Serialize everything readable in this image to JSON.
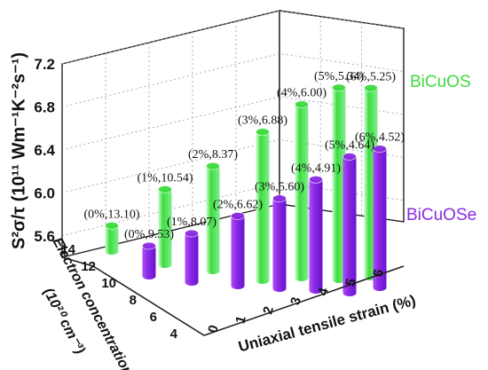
{
  "chart_data": {
    "type": "bar",
    "y_axis_title": "S²σ/τ (10¹¹ Wm⁻¹K⁻²s⁻¹)",
    "x_axis_title": "Uniaxial tensile strain (%)",
    "depth_axis_title_line1": "Electron concentration",
    "depth_axis_title_line2": "(10²⁰ cm⁻³)",
    "y_ticks": [
      "5.6",
      "6.0",
      "6.4",
      "6.8",
      "7.2"
    ],
    "ylim": [
      5.4,
      7.2
    ],
    "x_ticks": [
      "0",
      "1",
      "2",
      "3",
      "4",
      "5",
      "6"
    ],
    "depth_ticks": [
      "4",
      "6",
      "8",
      "10",
      "12",
      "14"
    ],
    "grid": true,
    "legend_placement": "right",
    "series": [
      {
        "name": "BiCuOS",
        "color": "#3ddc3d",
        "strain": [
          0,
          1,
          2,
          3,
          4,
          5,
          6
        ],
        "electron_concentration": [
          13.1,
          10.54,
          8.37,
          6.88,
          6.0,
          5.34,
          5.25
        ],
        "values": [
          5.68,
          6.05,
          6.28,
          6.62,
          6.87,
          7.03,
          7.02
        ],
        "labels": [
          "(0%,13.10)",
          "(1%,10.54)",
          "(2%,8.37)",
          "(3%,6.88)",
          "(4%,6.00)",
          "(5%,5.34)",
          "(6%,5.25)"
        ]
      },
      {
        "name": "BiCuOSe",
        "color": "#8a2be2",
        "strain": [
          0,
          1,
          2,
          3,
          4,
          5,
          6
        ],
        "electron_concentration": [
          9.53,
          8.07,
          6.62,
          5.6,
          4.91,
          4.64,
          4.52
        ],
        "values": [
          5.55,
          5.68,
          5.85,
          6.02,
          6.2,
          6.42,
          6.48
        ],
        "labels": [
          "(0%,9.53)",
          "(1%,8.07)",
          "(2%,6.62)",
          "(3%,5.60)",
          "(4%,4.91)",
          "(5%,4.64)",
          "(6%,4.52)"
        ]
      }
    ]
  }
}
